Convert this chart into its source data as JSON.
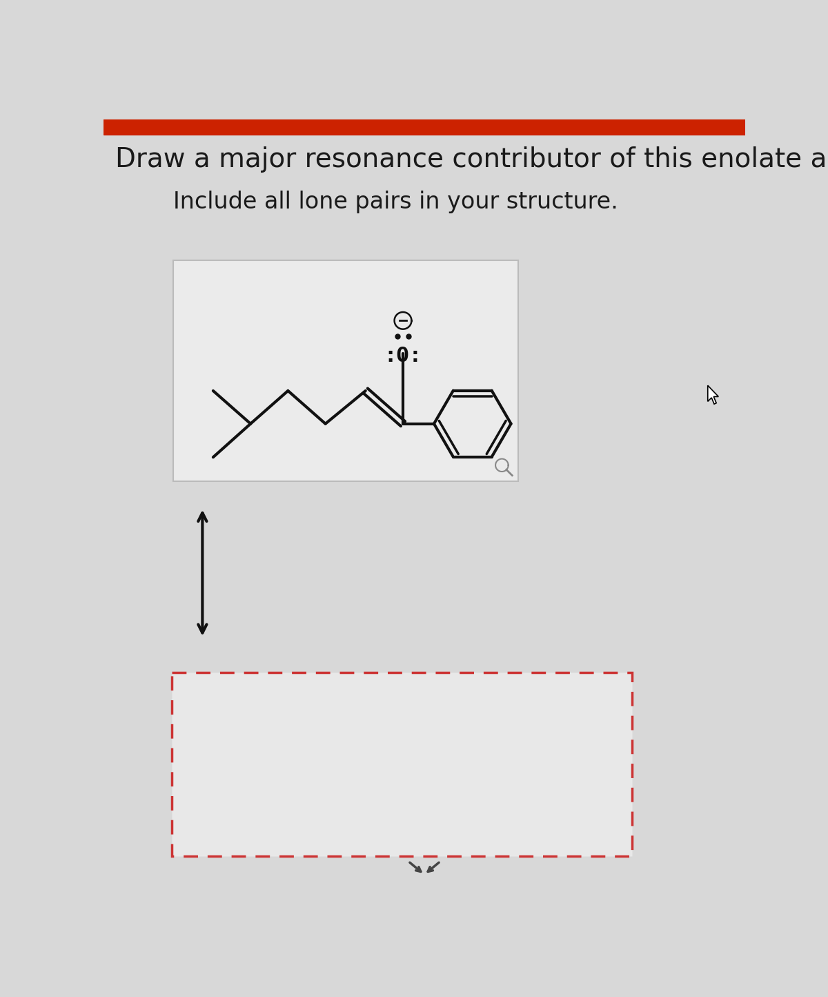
{
  "title1": "Draw a major resonance contributor of this enolate anion.",
  "title2": "Include all lone pairs in your structure.",
  "bg_color": "#d8d8d8",
  "box_bg": "#e8e8e8",
  "box_border": "#bbbbbb",
  "dashed_border": "#cc3333",
  "text_color": "#1a1a1a",
  "line_color": "#111111",
  "title1_fontsize": 28,
  "title2_fontsize": 24,
  "arrow_color": "#111111",
  "red_bar_color": "#cc2200",
  "bond_lw": 3.0,
  "ring_r": 0.72
}
